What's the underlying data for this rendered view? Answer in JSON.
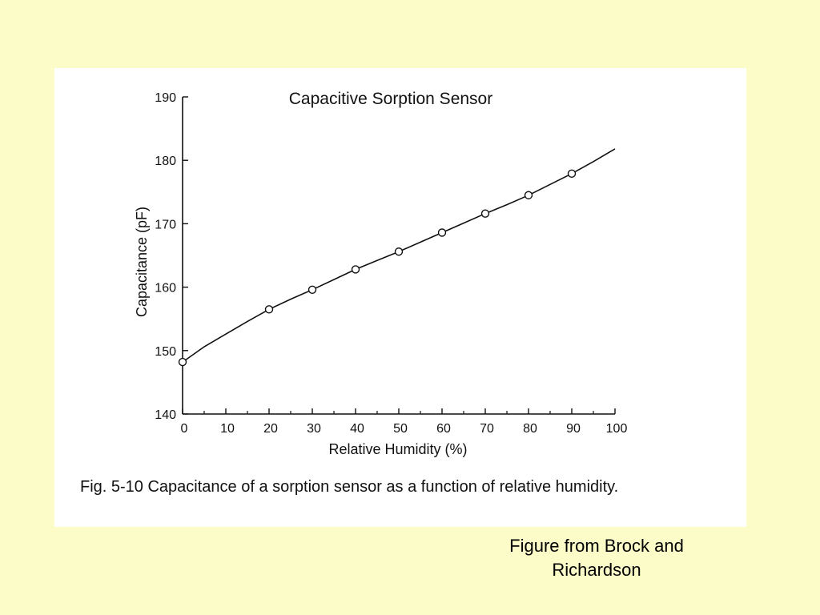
{
  "figure": {
    "caption": "Fig. 5-10  Capacitance of a sorption sensor as a function of relative humidity."
  },
  "source_note": {
    "line1": "Figure from Brock and",
    "line2": "Richardson"
  },
  "colors": {
    "background": "#fcfcc8",
    "panel": "#ffffff",
    "ink": "#111111"
  },
  "chart_data": {
    "type": "line",
    "title": "Capacitive Sorption Sensor",
    "xlabel": "Relative Humidity (%)",
    "ylabel": "Capacitance (pF)",
    "xlim": [
      0,
      100
    ],
    "ylim": [
      140,
      190
    ],
    "x_ticks": [
      0,
      10,
      20,
      30,
      40,
      50,
      60,
      70,
      80,
      90,
      100
    ],
    "x_minor_ticks": [
      5,
      15,
      25,
      35,
      45,
      55,
      65,
      75,
      85,
      95
    ],
    "y_ticks": [
      140,
      150,
      160,
      170,
      180,
      190
    ],
    "grid": false,
    "series": [
      {
        "x": [
          0,
          20,
          30,
          40,
          50,
          60,
          70,
          80,
          90
        ],
        "values": [
          148.2,
          156.5,
          159.6,
          162.8,
          165.6,
          168.6,
          171.6,
          174.5,
          177.9
        ],
        "marker": "open-circle"
      }
    ],
    "curve": {
      "x": [
        0,
        5,
        10,
        15,
        20,
        25,
        30,
        35,
        40,
        45,
        50,
        55,
        60,
        65,
        70,
        75,
        80,
        85,
        90,
        95,
        100
      ],
      "values": [
        148.2,
        150.6,
        152.6,
        154.6,
        156.5,
        158.1,
        159.6,
        161.2,
        162.8,
        164.2,
        165.6,
        167.1,
        168.6,
        170.1,
        171.6,
        173.0,
        174.5,
        176.2,
        177.9,
        179.8,
        181.8
      ]
    }
  }
}
